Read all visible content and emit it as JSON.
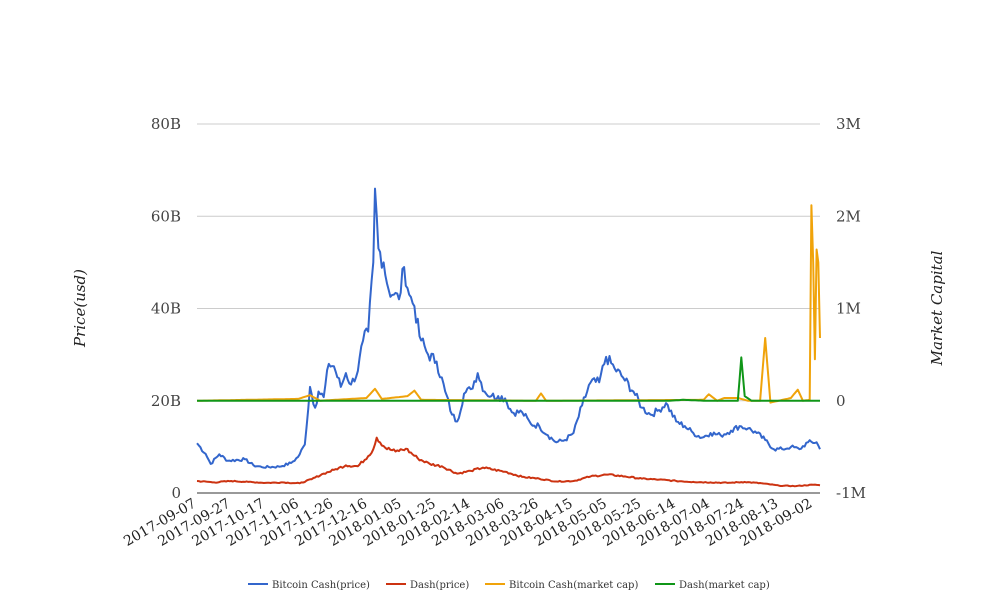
{
  "chart_data": {
    "type": "line",
    "y_left": {
      "label": "Price(usd)",
      "min": 0,
      "max": 80000000000,
      "ticks": [
        0,
        20000000000,
        40000000000,
        60000000000,
        80000000000
      ],
      "tick_labels": [
        "0",
        "20B",
        "40B",
        "60B",
        "80B"
      ]
    },
    "y_right": {
      "label": "Market Capital",
      "min": -1000000,
      "max": 3000000,
      "ticks": [
        -1000000,
        0,
        1000000,
        2000000,
        3000000
      ],
      "tick_labels": [
        "-1M",
        "0",
        "1M",
        "2M",
        "3M"
      ]
    },
    "x": {
      "start": "2017-09-07",
      "end": "2018-09-06",
      "tick_labels": [
        "2017-09-07",
        "2017-09-27",
        "2017-10-17",
        "2017-11-06",
        "2017-11-26",
        "2017-12-16",
        "2018-01-05",
        "2018-01-25",
        "2018-02-14",
        "2018-03-06",
        "2018-03-26",
        "2018-04-15",
        "2018-05-05",
        "2018-05-25",
        "2018-06-14",
        "2018-07-04",
        "2018-07-24",
        "2018-08-13",
        "2018-09-02"
      ]
    },
    "grid": true,
    "legend_position": "bottom",
    "series": [
      {
        "name": "Bitcoin Cash(price)",
        "axis": "left",
        "color": "#3366cc",
        "points": [
          [
            "2017-09-07",
            10800000000.0
          ],
          [
            "2017-09-12",
            8500000000.0
          ],
          [
            "2017-09-15",
            6300000000.0
          ],
          [
            "2017-09-20",
            8400000000.0
          ],
          [
            "2017-09-25",
            7000000000.0
          ],
          [
            "2017-10-05",
            7300000000.0
          ],
          [
            "2017-10-10",
            6000000000.0
          ],
          [
            "2017-10-15",
            5600000000.0
          ],
          [
            "2017-10-25",
            5700000000.0
          ],
          [
            "2017-11-01",
            6500000000.0
          ],
          [
            "2017-11-05",
            7800000000.0
          ],
          [
            "2017-11-09",
            10500000000.0
          ],
          [
            "2017-11-12",
            23000000000.0
          ],
          [
            "2017-11-15",
            18500000000.0
          ],
          [
            "2017-11-17",
            22000000000.0
          ],
          [
            "2017-11-20",
            20800000000.0
          ],
          [
            "2017-11-23",
            28000000000.0
          ],
          [
            "2017-11-26",
            27500000000.0
          ],
          [
            "2017-11-30",
            23000000000.0
          ],
          [
            "2017-12-03",
            26000000000.0
          ],
          [
            "2017-12-06",
            23500000000.0
          ],
          [
            "2017-12-10",
            26500000000.0
          ],
          [
            "2017-12-13",
            33000000000.0
          ],
          [
            "2017-12-16",
            35000000000.0
          ],
          [
            "2017-12-19",
            50000000000.0
          ],
          [
            "2017-12-20",
            66000000000.0
          ],
          [
            "2017-12-22",
            53000000000.0
          ],
          [
            "2017-12-25",
            50000000000.0
          ],
          [
            "2017-12-28",
            44000000000.0
          ],
          [
            "2017-12-31",
            43000000000.0
          ],
          [
            "2018-01-03",
            42000000000.0
          ],
          [
            "2018-01-06",
            49000000000.0
          ],
          [
            "2018-01-09",
            43000000000.0
          ],
          [
            "2018-01-12",
            40500000000.0
          ],
          [
            "2018-01-15",
            34000000000.0
          ],
          [
            "2018-01-20",
            30000000000.0
          ],
          [
            "2018-01-25",
            28500000000.0
          ],
          [
            "2018-01-30",
            22000000000.0
          ],
          [
            "2018-02-03",
            17000000000.0
          ],
          [
            "2018-02-06",
            15500000000.0
          ],
          [
            "2018-02-10",
            21500000000.0
          ],
          [
            "2018-02-14",
            22500000000.0
          ],
          [
            "2018-02-18",
            26000000000.0
          ],
          [
            "2018-02-22",
            22000000000.0
          ],
          [
            "2018-02-26",
            21000000000.0
          ],
          [
            "2018-03-02",
            21000000000.0
          ],
          [
            "2018-03-06",
            20500000000.0
          ],
          [
            "2018-03-10",
            17500000000.0
          ],
          [
            "2018-03-16",
            17500000000.0
          ],
          [
            "2018-03-21",
            15000000000.0
          ],
          [
            "2018-03-26",
            14500000000.0
          ],
          [
            "2018-03-31",
            12500000000.0
          ],
          [
            "2018-04-05",
            11000000000.0
          ],
          [
            "2018-04-10",
            11500000000.0
          ],
          [
            "2018-04-15",
            13000000000.0
          ],
          [
            "2018-04-20",
            19000000000.0
          ],
          [
            "2018-04-25",
            24000000000.0
          ],
          [
            "2018-04-30",
            24000000000.0
          ],
          [
            "2018-05-04",
            29500000000.0
          ],
          [
            "2018-05-09",
            27000000000.0
          ],
          [
            "2018-05-14",
            25000000000.0
          ],
          [
            "2018-05-20",
            22000000000.0
          ],
          [
            "2018-05-25",
            18500000000.0
          ],
          [
            "2018-05-30",
            17000000000.0
          ],
          [
            "2018-06-04",
            18000000000.0
          ],
          [
            "2018-06-08",
            19500000000.0
          ],
          [
            "2018-06-14",
            15500000000.0
          ],
          [
            "2018-06-19",
            14500000000.0
          ],
          [
            "2018-06-24",
            13000000000.0
          ],
          [
            "2018-06-29",
            12000000000.0
          ],
          [
            "2018-07-04",
            13000000000.0
          ],
          [
            "2018-07-10",
            12500000000.0
          ],
          [
            "2018-07-16",
            13500000000.0
          ],
          [
            "2018-07-21",
            14500000000.0
          ],
          [
            "2018-07-26",
            14000000000.0
          ],
          [
            "2018-07-31",
            13000000000.0
          ],
          [
            "2018-08-05",
            11500000000.0
          ],
          [
            "2018-08-10",
            9500000000.0
          ],
          [
            "2018-08-15",
            9500000000.0
          ],
          [
            "2018-08-20",
            10000000000.0
          ],
          [
            "2018-08-25",
            9500000000.0
          ],
          [
            "2018-08-30",
            11000000000.0
          ],
          [
            "2018-09-04",
            11000000000.0
          ],
          [
            "2018-09-06",
            9500000000.0
          ]
        ]
      },
      {
        "name": "Dash(price)",
        "axis": "left",
        "color": "#cc3311",
        "points": [
          [
            "2017-09-07",
            2600000000.0
          ],
          [
            "2017-09-17",
            2300000000.0
          ],
          [
            "2017-09-27",
            2600000000.0
          ],
          [
            "2017-10-07",
            2400000000.0
          ],
          [
            "2017-10-17",
            2200000000.0
          ],
          [
            "2017-10-27",
            2300000000.0
          ],
          [
            "2017-11-06",
            2100000000.0
          ],
          [
            "2017-11-13",
            3000000000.0
          ],
          [
            "2017-11-20",
            4200000000.0
          ],
          [
            "2017-11-26",
            5000000000.0
          ],
          [
            "2017-12-03",
            6000000000.0
          ],
          [
            "2017-12-10",
            5800000000.0
          ],
          [
            "2017-12-16",
            8000000000.0
          ],
          [
            "2017-12-19",
            9500000000.0
          ],
          [
            "2017-12-21",
            12000000000.0
          ],
          [
            "2017-12-26",
            9800000000.0
          ],
          [
            "2018-01-01",
            9000000000.0
          ],
          [
            "2018-01-07",
            9600000000.0
          ],
          [
            "2018-01-14",
            7500000000.0
          ],
          [
            "2018-01-21",
            6300000000.0
          ],
          [
            "2018-01-28",
            5800000000.0
          ],
          [
            "2018-02-06",
            4200000000.0
          ],
          [
            "2018-02-14",
            4800000000.0
          ],
          [
            "2018-02-21",
            5500000000.0
          ],
          [
            "2018-03-06",
            4600000000.0
          ],
          [
            "2018-03-16",
            3500000000.0
          ],
          [
            "2018-03-26",
            3100000000.0
          ],
          [
            "2018-04-05",
            2500000000.0
          ],
          [
            "2018-04-15",
            2600000000.0
          ],
          [
            "2018-04-25",
            3600000000.0
          ],
          [
            "2018-05-05",
            4000000000.0
          ],
          [
            "2018-05-15",
            3600000000.0
          ],
          [
            "2018-05-25",
            3100000000.0
          ],
          [
            "2018-06-04",
            2900000000.0
          ],
          [
            "2018-06-14",
            2600000000.0
          ],
          [
            "2018-06-24",
            2400000000.0
          ],
          [
            "2018-07-04",
            2300000000.0
          ],
          [
            "2018-07-14",
            2200000000.0
          ],
          [
            "2018-07-24",
            2400000000.0
          ],
          [
            "2018-08-03",
            2100000000.0
          ],
          [
            "2018-08-13",
            1600000000.0
          ],
          [
            "2018-08-23",
            1500000000.0
          ],
          [
            "2018-09-02",
            1800000000.0
          ],
          [
            "2018-09-06",
            1700000000.0
          ]
        ]
      },
      {
        "name": "Bitcoin Cash(market cap)",
        "axis": "right",
        "color": "#f0a30a",
        "points": [
          [
            "2017-09-07",
            0
          ],
          [
            "2017-11-05",
            20000
          ],
          [
            "2017-11-12",
            60000
          ],
          [
            "2017-11-18",
            0
          ],
          [
            "2017-12-15",
            30000
          ],
          [
            "2017-12-20",
            130000
          ],
          [
            "2017-12-24",
            20000
          ],
          [
            "2018-01-08",
            50000
          ],
          [
            "2018-01-12",
            110000
          ],
          [
            "2018-01-16",
            10000
          ],
          [
            "2018-03-24",
            0
          ],
          [
            "2018-03-27",
            80000
          ],
          [
            "2018-03-30",
            0
          ],
          [
            "2018-06-30",
            10000
          ],
          [
            "2018-07-03",
            70000
          ],
          [
            "2018-07-08",
            0
          ],
          [
            "2018-07-12",
            30000
          ],
          [
            "2018-07-20",
            30000
          ],
          [
            "2018-07-26",
            0
          ],
          [
            "2018-08-02",
            0
          ],
          [
            "2018-08-05",
            680000
          ],
          [
            "2018-08-08",
            -20000
          ],
          [
            "2018-08-20",
            30000
          ],
          [
            "2018-08-24",
            120000
          ],
          [
            "2018-08-27",
            0
          ],
          [
            "2018-08-31",
            10000
          ],
          [
            "2018-09-01",
            2120000
          ],
          [
            "2018-09-02",
            1500000
          ],
          [
            "2018-09-03",
            450000
          ],
          [
            "2018-09-04",
            1640000
          ],
          [
            "2018-09-05",
            1500000
          ],
          [
            "2018-09-06",
            680000
          ]
        ]
      },
      {
        "name": "Dash(market cap)",
        "axis": "right",
        "color": "#109618",
        "points": [
          [
            "2017-09-07",
            0
          ],
          [
            "2018-06-10",
            0
          ],
          [
            "2018-06-18",
            10000
          ],
          [
            "2018-07-01",
            0
          ],
          [
            "2018-07-20",
            0
          ],
          [
            "2018-07-22",
            470000
          ],
          [
            "2018-07-24",
            50000
          ],
          [
            "2018-07-28",
            0
          ],
          [
            "2018-09-06",
            0
          ]
        ]
      }
    ]
  }
}
